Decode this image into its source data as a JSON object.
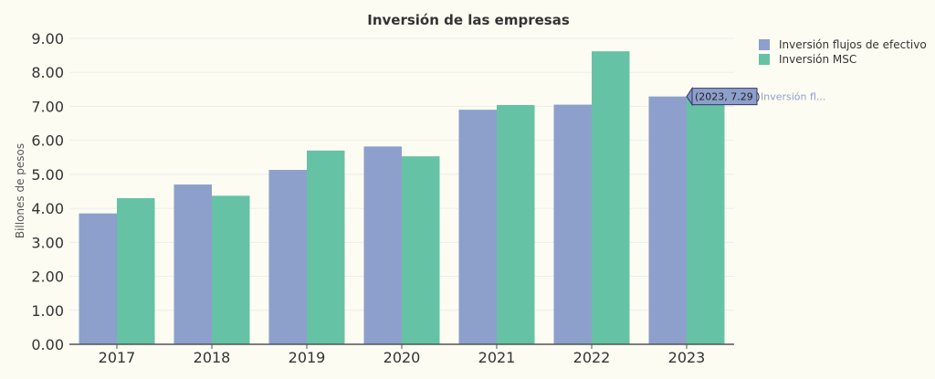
{
  "chart_data": {
    "type": "bar",
    "title": "Inversión de las empresas",
    "xlabel": "",
    "ylabel": "Billones de pesos",
    "categories": [
      "2017",
      "2018",
      "2019",
      "2020",
      "2021",
      "2022",
      "2023"
    ],
    "series": [
      {
        "name": "Inversión flujos de efectivo",
        "color": "#8da0cb",
        "values": [
          3.85,
          4.7,
          5.13,
          5.82,
          6.9,
          7.05,
          7.29
        ]
      },
      {
        "name": "Inversión MSC",
        "color": "#66c2a5",
        "values": [
          4.3,
          4.37,
          5.7,
          5.53,
          7.04,
          8.62,
          7.29
        ]
      }
    ],
    "ylim": [
      0,
      9
    ],
    "yticks": [
      "0.00",
      "1.00",
      "2.00",
      "3.00",
      "4.00",
      "5.00",
      "6.00",
      "7.00",
      "8.00",
      "9.00"
    ],
    "grid": true,
    "legend_position": "top-right",
    "tooltip": {
      "text": "(2023, 7.29 )",
      "series_label": "Inversión fl..."
    }
  }
}
